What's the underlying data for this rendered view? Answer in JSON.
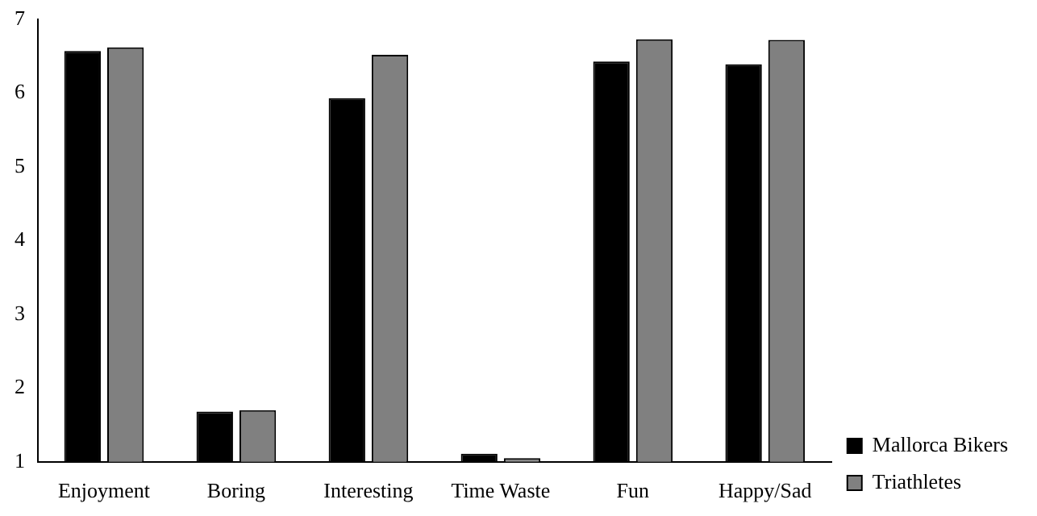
{
  "chart_data": {
    "type": "bar",
    "categories": [
      "Enjoyment",
      "Boring",
      "Interesting",
      "Time Waste",
      "Fun",
      "Happy/Sad"
    ],
    "series": [
      {
        "name": "Mallorca Bikers",
        "color": "#000000",
        "values": [
          6.57,
          1.68,
          5.93,
          1.11,
          6.43,
          6.39
        ]
      },
      {
        "name": "Triathletes",
        "color": "#808080",
        "values": [
          6.62,
          1.7,
          6.52,
          1.05,
          6.73,
          6.72
        ]
      }
    ],
    "ylim": [
      1,
      7
    ],
    "yticks": [
      1,
      2,
      3,
      4,
      5,
      6,
      7
    ],
    "grid": false,
    "legend": "bottom right"
  }
}
